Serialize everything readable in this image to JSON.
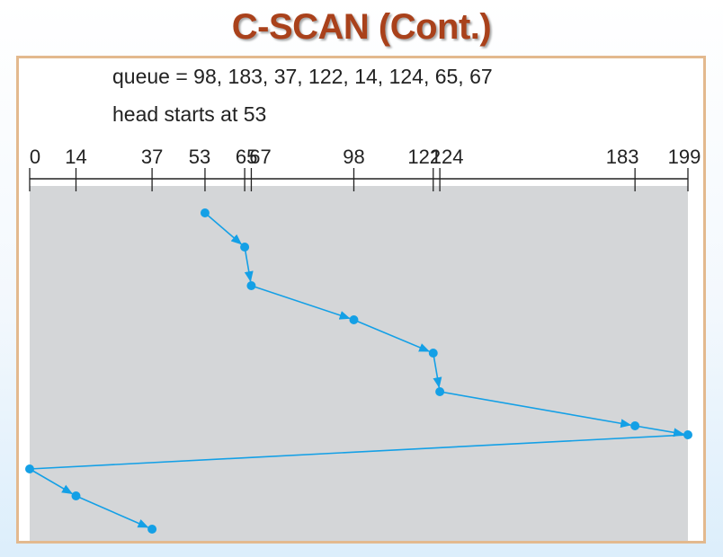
{
  "title": "C-SCAN (Cont.)",
  "queue_text": "queue = 98, 183, 37, 122, 14, 124, 65, 67",
  "head_text": "head starts at 53",
  "colors": {
    "title": "#a9411b",
    "frame_border": "#e3b98e",
    "track_area": "#d4d6d8",
    "path": "#14a0e6"
  },
  "chart_data": {
    "type": "line",
    "axis": {
      "min": 0,
      "max": 199
    },
    "tick_labels": [
      "0",
      "14",
      "37",
      "53",
      "65",
      "67",
      "98",
      "122",
      "124",
      "183",
      "199"
    ],
    "head_start": 53,
    "queue": [
      98,
      183,
      37,
      122,
      14,
      124,
      65,
      67
    ],
    "service_order": [
      53,
      65,
      67,
      98,
      122,
      124,
      183,
      199,
      0,
      14,
      37
    ]
  }
}
